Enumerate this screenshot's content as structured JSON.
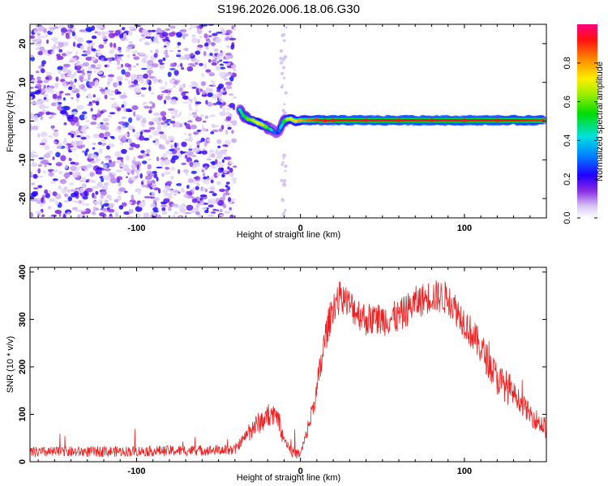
{
  "chart_data": [
    {
      "type": "scatter",
      "title": "S196.2026.006.18.06.G30",
      "xlabel": "Height of straight line (km)",
      "ylabel": "Frequency (Hz)",
      "xlim": [
        -165,
        150
      ],
      "ylim": [
        -25,
        25
      ],
      "xticks": [
        -100,
        0,
        100
      ],
      "yticks": [
        -20,
        -10,
        0,
        10,
        20
      ],
      "noise_region_x": [
        -165,
        -40
      ],
      "signal_track": {
        "x": [
          -37,
          -35,
          -32,
          -29,
          -26,
          -24,
          -21,
          -18,
          -16,
          -14,
          -13,
          -12,
          -10,
          -8,
          -6,
          -3,
          0,
          5,
          10,
          15,
          20,
          40,
          60,
          80,
          100,
          120,
          148
        ],
        "y": [
          3.0,
          1.5,
          0.5,
          0.2,
          -0.5,
          -0.8,
          -1.5,
          -2.2,
          -2.8,
          -3.0,
          -2.5,
          -1.5,
          0.0,
          0.5,
          0.6,
          0.0,
          0.2,
          0.2,
          0.3,
          0.1,
          0.2,
          0.2,
          0.2,
          0.2,
          0.2,
          0.2,
          0.2
        ],
        "amplitude": [
          0.45,
          0.5,
          0.6,
          0.65,
          0.7,
          0.75,
          0.6,
          0.45,
          0.3,
          0.25,
          0.3,
          0.4,
          0.55,
          0.65,
          0.7,
          0.75,
          0.8,
          0.85,
          0.9,
          0.92,
          0.93,
          0.95,
          0.95,
          0.95,
          0.95,
          0.94,
          0.9
        ]
      },
      "colorbar": {
        "label": "Normalized spectral amplitude",
        "range": [
          0,
          1
        ],
        "ticks": [
          0.0,
          0.2,
          0.4,
          0.6,
          0.8
        ]
      }
    },
    {
      "type": "line",
      "title": "",
      "xlabel": "Height of straight line (km)",
      "ylabel": "SNR (10 * v/v)",
      "xlim": [
        -165,
        150
      ],
      "ylim": [
        0,
        410
      ],
      "xticks": [
        -100,
        0,
        100
      ],
      "yticks": [
        0,
        100,
        200,
        300,
        400
      ],
      "color": "#ee2222",
      "envelope": {
        "x": [
          -165,
          -100,
          -40,
          -30,
          -20,
          -15,
          -10,
          -5,
          0,
          5,
          10,
          15,
          20,
          25,
          30,
          40,
          50,
          60,
          70,
          80,
          90,
          100,
          110,
          120,
          130,
          140,
          150
        ],
        "y": [
          20,
          22,
          25,
          70,
          95,
          105,
          50,
          20,
          15,
          75,
          150,
          260,
          330,
          350,
          330,
          300,
          300,
          305,
          335,
          350,
          345,
          295,
          240,
          175,
          145,
          100,
          70
        ]
      }
    }
  ]
}
